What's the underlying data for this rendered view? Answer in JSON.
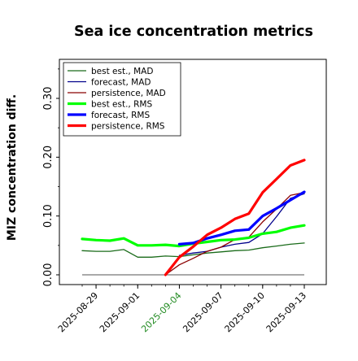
{
  "chart_data": {
    "type": "line",
    "title": "Sea ice concentration metrics",
    "xlabel": "",
    "ylabel": "MIZ concentration diff.",
    "ylim": [
      -0.01,
      0.37
    ],
    "grid": false,
    "legend_placement": "top-left",
    "x_ticks": [
      "2025-08-29",
      "2025-09-01",
      "2025-09-04",
      "2025-09-07",
      "2025-09-10",
      "2025-09-13"
    ],
    "x_tick_colors": [
      "#000000",
      "#000000",
      "#228b22",
      "#000000",
      "#000000",
      "#000000"
    ],
    "y_ticks": [
      0.0,
      0.1,
      0.2,
      0.3
    ],
    "y_tick_labels": [
      "0.00",
      "0.10",
      "0.20",
      "0.30"
    ],
    "series": [
      {
        "name": "best est., MAD",
        "color": "#1a6b1a",
        "width": 1.3,
        "x": [
          "2025-08-28",
          "2025-08-29",
          "2025-08-30",
          "2025-08-31",
          "2025-09-01",
          "2025-09-02",
          "2025-09-03",
          "2025-09-04",
          "2025-09-05",
          "2025-09-06",
          "2025-09-07",
          "2025-09-08",
          "2025-09-09",
          "2025-09-10",
          "2025-09-11",
          "2025-09-12",
          "2025-09-13"
        ],
        "y": [
          0.041,
          0.04,
          0.04,
          0.043,
          0.03,
          0.03,
          0.032,
          0.031,
          0.034,
          0.037,
          0.039,
          0.041,
          0.042,
          0.046,
          0.049,
          0.052,
          0.054
        ]
      },
      {
        "name": "forecast,  MAD",
        "color": "#00008b",
        "width": 1.3,
        "x": [
          "2025-09-04",
          "2025-09-05",
          "2025-09-06",
          "2025-09-07",
          "2025-09-08",
          "2025-09-09",
          "2025-09-10",
          "2025-09-11",
          "2025-09-12",
          "2025-09-13"
        ],
        "y": [
          0.033,
          0.037,
          0.04,
          0.047,
          0.052,
          0.055,
          0.07,
          0.099,
          0.13,
          0.138
        ]
      },
      {
        "name": "persistence, MAD",
        "color": "#8b0000",
        "width": 1.3,
        "x": [
          "2025-09-03",
          "2025-09-04",
          "2025-09-05",
          "2025-09-06",
          "2025-09-07",
          "2025-09-08",
          "2025-09-09",
          "2025-09-10",
          "2025-09-11",
          "2025-09-12",
          "2025-09-13"
        ],
        "y": [
          0.0,
          0.017,
          0.028,
          0.04,
          0.047,
          0.06,
          0.064,
          0.09,
          0.112,
          0.135,
          0.14
        ]
      },
      {
        "name": "best est., RMS",
        "color": "#00ff00",
        "width": 3.2,
        "x": [
          "2025-08-28",
          "2025-08-29",
          "2025-08-30",
          "2025-08-31",
          "2025-09-01",
          "2025-09-02",
          "2025-09-03",
          "2025-09-04",
          "2025-09-05",
          "2025-09-06",
          "2025-09-07",
          "2025-09-08",
          "2025-09-09",
          "2025-09-10",
          "2025-09-11",
          "2025-09-12",
          "2025-09-13"
        ],
        "y": [
          0.061,
          0.059,
          0.058,
          0.062,
          0.05,
          0.05,
          0.051,
          0.049,
          0.053,
          0.056,
          0.059,
          0.06,
          0.063,
          0.07,
          0.073,
          0.08,
          0.084
        ]
      },
      {
        "name": "forecast,  RMS",
        "color": "#0000ff",
        "width": 3.2,
        "x": [
          "2025-09-04",
          "2025-09-05",
          "2025-09-06",
          "2025-09-07",
          "2025-09-08",
          "2025-09-09",
          "2025-09-10",
          "2025-09-11",
          "2025-09-12",
          "2025-09-13"
        ],
        "y": [
          0.052,
          0.054,
          0.062,
          0.068,
          0.075,
          0.077,
          0.1,
          0.113,
          0.127,
          0.141
        ]
      },
      {
        "name": "persistence, RMS",
        "color": "#ff0000",
        "width": 3.2,
        "x": [
          "2025-09-03",
          "2025-09-04",
          "2025-09-05",
          "2025-09-06",
          "2025-09-07",
          "2025-09-08",
          "2025-09-09",
          "2025-09-10",
          "2025-09-11",
          "2025-09-12",
          "2025-09-13"
        ],
        "y": [
          0.0,
          0.03,
          0.048,
          0.068,
          0.08,
          0.095,
          0.104,
          0.14,
          0.163,
          0.186,
          0.195
        ]
      }
    ],
    "reference_lines": [
      {
        "y": 0.0,
        "x_start": "2025-08-28",
        "x_end": "2025-09-13",
        "color": "#555555"
      }
    ]
  }
}
